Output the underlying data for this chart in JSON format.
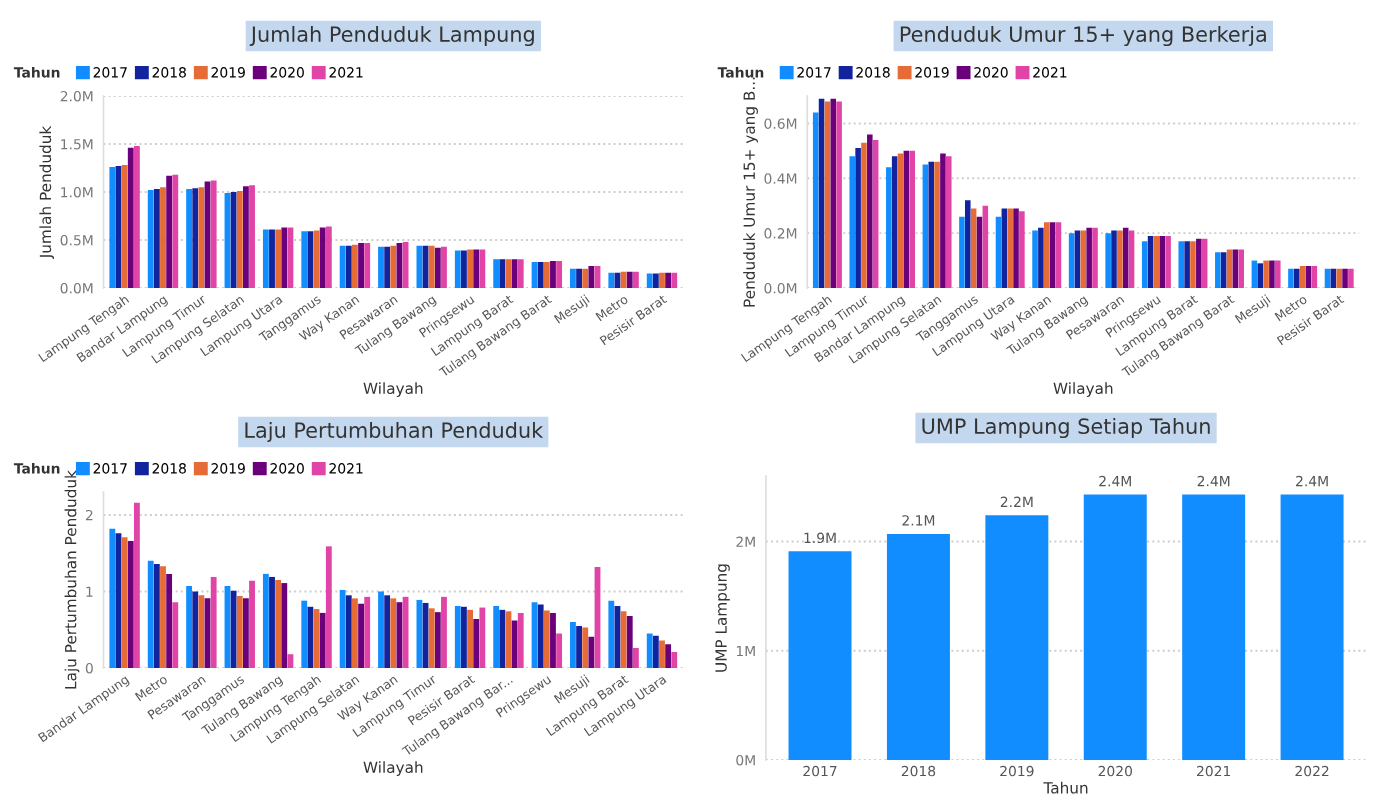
{
  "chart_data": [
    {
      "type": "bar",
      "title": "Jumlah Penduduk Lampung",
      "xlabel": "Wilayah",
      "ylabel": "Jumlah Penduduk",
      "legend_title": "Tahun",
      "legend": "top left",
      "grid": "y",
      "categories": [
        "Lampung Tengah",
        "Bandar Lampung",
        "Lampung Timur",
        "Lampung Selatan",
        "Lampung Utara",
        "Tanggamus",
        "Way Kanan",
        "Pesawaran",
        "Tulang Bawang",
        "Pringsewu",
        "Lampung Barat",
        "Tulang Bawang Barat",
        "Mesuji",
        "Metro",
        "Pesisir Barat"
      ],
      "ylim": [
        0,
        2.0
      ],
      "yticks": [
        {
          "value": 0,
          "label": "0.0M"
        },
        {
          "value": 0.5,
          "label": "0.5M"
        },
        {
          "value": 1.0,
          "label": "1.0M"
        },
        {
          "value": 1.5,
          "label": "1.5M"
        },
        {
          "value": 2.0,
          "label": "2.0M"
        }
      ],
      "series": [
        {
          "name": "2017",
          "color": "#118dff",
          "values": [
            1.26,
            1.02,
            1.03,
            0.99,
            0.61,
            0.59,
            0.44,
            0.43,
            0.44,
            0.39,
            0.3,
            0.27,
            0.2,
            0.16,
            0.15
          ]
        },
        {
          "name": "2018",
          "color": "#12239e",
          "values": [
            1.27,
            1.03,
            1.04,
            1.0,
            0.61,
            0.59,
            0.44,
            0.43,
            0.44,
            0.39,
            0.3,
            0.27,
            0.2,
            0.16,
            0.15
          ]
        },
        {
          "name": "2019",
          "color": "#e66c37",
          "values": [
            1.28,
            1.05,
            1.05,
            1.01,
            0.61,
            0.6,
            0.45,
            0.44,
            0.44,
            0.4,
            0.3,
            0.27,
            0.2,
            0.17,
            0.16
          ]
        },
        {
          "name": "2020",
          "color": "#6b007b",
          "values": [
            1.46,
            1.17,
            1.11,
            1.06,
            0.63,
            0.63,
            0.47,
            0.47,
            0.42,
            0.4,
            0.3,
            0.28,
            0.23,
            0.17,
            0.16
          ]
        },
        {
          "name": "2021",
          "color": "#e044a7",
          "values": [
            1.48,
            1.18,
            1.12,
            1.07,
            0.63,
            0.64,
            0.47,
            0.48,
            0.43,
            0.4,
            0.3,
            0.28,
            0.23,
            0.17,
            0.16
          ]
        }
      ]
    },
    {
      "type": "bar",
      "title": "Penduduk Umur 15+ yang Berkerja",
      "xlabel": "Wilayah",
      "ylabel": "Penduduk Umur 15+ yang B...",
      "legend_title": "Tahun",
      "legend": "top left",
      "grid": "y",
      "categories": [
        "Lampung Tengah",
        "Lampung Timur",
        "Bandar Lampung",
        "Lampung Selatan",
        "Tanggamus",
        "Lampung Utara",
        "Way Kanan",
        "Tulang Bawang",
        "Pesawaran",
        "Pringsewu",
        "Lampung Barat",
        "Tulang Bawang Barat",
        "Mesuji",
        "Metro",
        "Pesisir Barat"
      ],
      "ylim": [
        0,
        0.7
      ],
      "yticks": [
        {
          "value": 0,
          "label": "0.0M"
        },
        {
          "value": 0.2,
          "label": "0.2M"
        },
        {
          "value": 0.4,
          "label": "0.4M"
        },
        {
          "value": 0.6,
          "label": "0.6M"
        }
      ],
      "series": [
        {
          "name": "2017",
          "color": "#118dff",
          "values": [
            0.64,
            0.48,
            0.44,
            0.45,
            0.26,
            0.26,
            0.21,
            0.2,
            0.2,
            0.17,
            0.17,
            0.13,
            0.1,
            0.07,
            0.07
          ]
        },
        {
          "name": "2018",
          "color": "#12239e",
          "values": [
            0.69,
            0.51,
            0.48,
            0.46,
            0.32,
            0.29,
            0.22,
            0.21,
            0.21,
            0.19,
            0.17,
            0.13,
            0.09,
            0.07,
            0.07
          ]
        },
        {
          "name": "2019",
          "color": "#e66c37",
          "values": [
            0.68,
            0.53,
            0.49,
            0.46,
            0.29,
            0.29,
            0.24,
            0.21,
            0.21,
            0.19,
            0.17,
            0.14,
            0.1,
            0.08,
            0.07
          ]
        },
        {
          "name": "2020",
          "color": "#6b007b",
          "values": [
            0.69,
            0.56,
            0.5,
            0.49,
            0.26,
            0.29,
            0.24,
            0.22,
            0.22,
            0.19,
            0.18,
            0.14,
            0.1,
            0.08,
            0.07
          ]
        },
        {
          "name": "2021",
          "color": "#e044a7",
          "values": [
            0.68,
            0.54,
            0.5,
            0.48,
            0.3,
            0.28,
            0.24,
            0.22,
            0.21,
            0.19,
            0.18,
            0.14,
            0.1,
            0.08,
            0.07
          ]
        }
      ]
    },
    {
      "type": "bar",
      "title": "Laju Pertumbuhan Penduduk",
      "xlabel": "Wilayah",
      "ylabel": "Laju Pertumbuhan Penduduk",
      "legend_title": "Tahun",
      "legend": "top left",
      "grid": "y",
      "categories": [
        "Bandar Lampung",
        "Metro",
        "Pesawaran",
        "Tanggamus",
        "Tulang Bawang",
        "Lampung Tengah",
        "Lampung Selatan",
        "Way Kanan",
        "Lampung Timur",
        "Pesisir Barat",
        "Tulang Bawang Bar...",
        "Pringsewu",
        "Mesuji",
        "Lampung Barat",
        "Lampung Utara"
      ],
      "ylim": [
        0,
        2.3
      ],
      "yticks": [
        0,
        1,
        2
      ],
      "series": [
        {
          "name": "2017",
          "color": "#118dff",
          "values": [
            1.82,
            1.4,
            1.07,
            1.07,
            1.23,
            0.88,
            1.02,
            1.0,
            0.89,
            0.81,
            0.81,
            0.86,
            0.6,
            0.88,
            0.45
          ]
        },
        {
          "name": "2018",
          "color": "#12239e",
          "values": [
            1.76,
            1.36,
            1.0,
            1.01,
            1.19,
            0.8,
            0.95,
            0.95,
            0.85,
            0.8,
            0.76,
            0.83,
            0.55,
            0.81,
            0.42
          ]
        },
        {
          "name": "2019",
          "color": "#e66c37",
          "values": [
            1.71,
            1.33,
            0.95,
            0.94,
            1.15,
            0.77,
            0.91,
            0.91,
            0.78,
            0.76,
            0.74,
            0.75,
            0.53,
            0.74,
            0.36
          ]
        },
        {
          "name": "2020",
          "color": "#6b007b",
          "values": [
            1.66,
            1.23,
            0.91,
            0.91,
            1.11,
            0.72,
            0.84,
            0.86,
            0.73,
            0.64,
            0.62,
            0.72,
            0.41,
            0.68,
            0.31
          ]
        },
        {
          "name": "2021",
          "color": "#e044a7",
          "values": [
            2.16,
            0.86,
            1.19,
            1.14,
            0.18,
            1.59,
            0.93,
            0.93,
            0.93,
            0.79,
            0.72,
            0.45,
            1.32,
            0.26,
            0.21
          ]
        }
      ]
    },
    {
      "type": "bar",
      "title": "UMP Lampung Setiap Tahun",
      "xlabel": "Tahun",
      "ylabel": "UMP Lampung",
      "grid": "y",
      "categories": [
        "2017",
        "2018",
        "2019",
        "2020",
        "2021",
        "2022"
      ],
      "ylim": [
        0,
        2.6
      ],
      "yticks": [
        {
          "value": 0,
          "label": "0M"
        },
        {
          "value": 1,
          "label": "1M"
        },
        {
          "value": 2,
          "label": "2M"
        }
      ],
      "series": [
        {
          "color": "#118dff",
          "values": [
            1.91,
            2.07,
            2.24,
            2.43,
            2.43,
            2.43
          ],
          "value_labels": [
            "1.9M",
            "2.1M",
            "2.2M",
            "2.4M",
            "2.4M",
            "2.4M"
          ]
        }
      ]
    }
  ]
}
